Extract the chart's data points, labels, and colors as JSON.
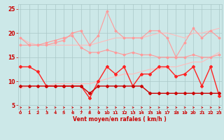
{
  "x": [
    0,
    1,
    2,
    3,
    4,
    5,
    6,
    7,
    8,
    9,
    10,
    11,
    12,
    13,
    14,
    15,
    16,
    17,
    18,
    19,
    20,
    21,
    22,
    23
  ],
  "series": [
    {
      "name": "rafales_max",
      "values": [
        19,
        17.5,
        17.5,
        17.5,
        18,
        18.5,
        20,
        20.5,
        17.5,
        19.5,
        24.5,
        20.5,
        19,
        19,
        19,
        20.5,
        20.5,
        19,
        15,
        18,
        21,
        19,
        20.5,
        19
      ],
      "color": "#ff9999",
      "linewidth": 0.8,
      "marker": "D",
      "markersize": 1.5
    },
    {
      "name": "rafales_mean",
      "values": [
        17.5,
        17.5,
        17.5,
        18,
        18.5,
        19,
        19.5,
        17,
        16,
        16,
        16.5,
        16,
        15.5,
        16,
        15.5,
        15.5,
        15,
        15,
        15,
        15,
        15.5,
        15,
        15,
        15.5
      ],
      "color": "#ff9999",
      "linewidth": 0.8,
      "marker": "D",
      "markersize": 1.5
    },
    {
      "name": "vent_max",
      "values": [
        13,
        13,
        12,
        9,
        9,
        9,
        9,
        9,
        6.5,
        10,
        13,
        11.5,
        13,
        9,
        11.5,
        11.5,
        13,
        13,
        11,
        11.5,
        13,
        9,
        13,
        7
      ],
      "color": "#ff2222",
      "linewidth": 1.0,
      "marker": "D",
      "markersize": 2.0
    },
    {
      "name": "vent_moyen",
      "values": [
        9,
        9,
        9,
        9,
        9,
        9,
        9,
        9,
        7.5,
        9,
        9,
        9,
        9,
        9,
        9,
        7.5,
        7.5,
        7.5,
        7.5,
        7.5,
        7.5,
        7.5,
        7.5,
        7.5
      ],
      "color": "#cc0000",
      "linewidth": 1.0,
      "marker": "D",
      "markersize": 2.0
    },
    {
      "name": "tendance_basse",
      "values": [
        8.5,
        9,
        9,
        9,
        9.5,
        9.5,
        9.5,
        9.5,
        9.5,
        10,
        10.5,
        11,
        11.5,
        11.5,
        12,
        12.5,
        12.5,
        13,
        13,
        13.5,
        14,
        14,
        15,
        16
      ],
      "color": "#ffbbbb",
      "linewidth": 0.8,
      "marker": null,
      "markersize": 0
    },
    {
      "name": "tendance_haute",
      "values": [
        19,
        18,
        17.5,
        17.5,
        17.5,
        17.5,
        17.5,
        17.5,
        17.5,
        18,
        18.5,
        19,
        19,
        19,
        19,
        19.5,
        20,
        20,
        19.5,
        19,
        20,
        20,
        20.5,
        21
      ],
      "color": "#ffbbbb",
      "linewidth": 0.8,
      "marker": null,
      "markersize": 0
    }
  ],
  "arrows": {
    "y": 4.55,
    "color": "#cc0000",
    "directions": [
      0,
      0,
      0,
      0,
      0,
      0,
      0,
      0,
      225,
      180,
      180,
      180,
      180,
      180,
      180,
      270,
      270,
      270,
      270,
      270,
      270,
      270,
      270,
      0
    ]
  },
  "xlabel": "Vent moyen/en rafales ( km/h )",
  "yticks": [
    5,
    10,
    15,
    20,
    25
  ],
  "xticks": [
    0,
    1,
    2,
    3,
    4,
    5,
    6,
    7,
    8,
    9,
    10,
    11,
    12,
    13,
    14,
    15,
    16,
    17,
    18,
    19,
    20,
    21,
    22,
    23
  ],
  "xlim": [
    -0.3,
    23.3
  ],
  "ylim": [
    4.2,
    26
  ],
  "bg_color": "#cce8e8",
  "grid_color": "#aac8c8",
  "tick_color": "#cc0000",
  "label_color": "#cc0000"
}
